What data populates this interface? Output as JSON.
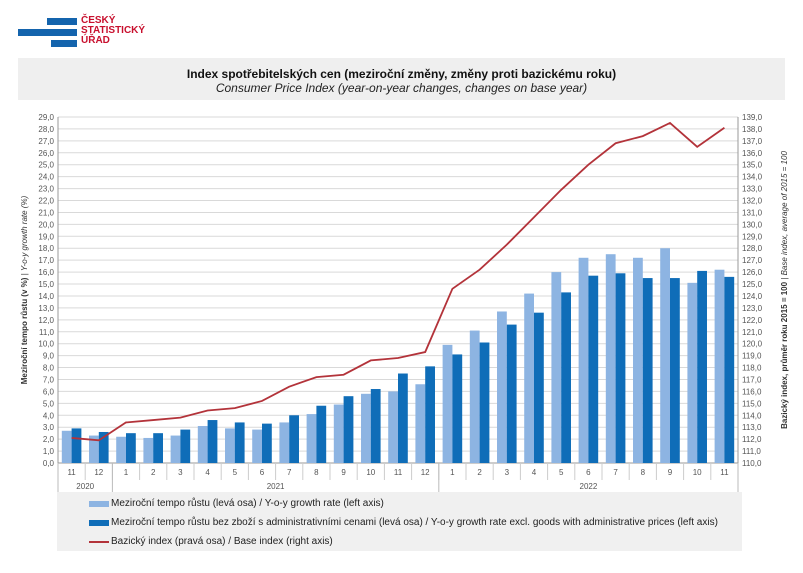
{
  "logo": {
    "lines": [
      "ČESKÝ",
      "STATISTICKÝ",
      "ÚŘAD"
    ]
  },
  "chart_data": {
    "type": "bar+line",
    "title": "Index spotřebitelských cen (meziroční změny, změny proti bazickému roku)",
    "subtitle": "Consumer Price Index (year-on-year changes, changes on base year)",
    "ylabel": "Meziroční tempo růstu (v %) | Y-o-y growth rate (%)",
    "ylabel_bold": "Meziroční tempo růstu (v %)",
    "ylabel_rest": " | Y-o-y growth rate (%)",
    "y2label_bold": "Bazický index, průměr roku 2015 = 100",
    "y2label_rest": " | Base index, average of 2015 = 100",
    "ylim": [
      0,
      29
    ],
    "y2lim": [
      110,
      139
    ],
    "grid": true,
    "legend": "bottom",
    "years": [
      {
        "label": "2020",
        "count": 2
      },
      {
        "label": "2021",
        "count": 12
      },
      {
        "label": "2022",
        "count": 11
      }
    ],
    "categories": [
      "11",
      "12",
      "1",
      "2",
      "3",
      "4",
      "5",
      "6",
      "7",
      "8",
      "9",
      "10",
      "11",
      "12",
      "1",
      "2",
      "3",
      "4",
      "5",
      "6",
      "7",
      "8",
      "9",
      "10",
      "11"
    ],
    "series": [
      {
        "name": "Meziroční tempo růstu (levá osa) / Y-o-y growth rate (left axis)",
        "type": "bar",
        "axis": "left",
        "color": "#8db4e2",
        "values": [
          2.7,
          2.3,
          2.2,
          2.1,
          2.3,
          3.1,
          2.9,
          2.8,
          3.4,
          4.1,
          4.9,
          5.8,
          6.0,
          6.6,
          9.9,
          11.1,
          12.7,
          14.2,
          16.0,
          17.2,
          17.5,
          17.2,
          18.0,
          15.1,
          16.2
        ]
      },
      {
        "name": "Meziroční tempo růstu bez zboží s administrativními cenami (levá osa) / Y-o-y growth rate excl. goods with administrative prices (left axis)",
        "type": "bar",
        "axis": "left",
        "color": "#0f6db8",
        "values": [
          2.9,
          2.6,
          2.5,
          2.5,
          2.8,
          3.6,
          3.4,
          3.3,
          4.0,
          4.8,
          5.6,
          6.2,
          7.5,
          8.1,
          9.1,
          10.1,
          11.6,
          12.6,
          14.3,
          15.7,
          15.9,
          15.5,
          15.5,
          16.1,
          15.6
        ]
      },
      {
        "name": "Bazický index (pravá osa) / Base index (right axis)",
        "type": "line",
        "axis": "right",
        "color": "#b3333a",
        "values": [
          112.1,
          111.9,
          113.4,
          113.6,
          113.8,
          114.4,
          114.6,
          115.2,
          116.4,
          117.2,
          117.4,
          118.6,
          118.8,
          119.3,
          124.6,
          126.2,
          128.3,
          130.6,
          132.9,
          135.0,
          136.8,
          137.4,
          138.5,
          136.5,
          138.1
        ]
      }
    ]
  }
}
